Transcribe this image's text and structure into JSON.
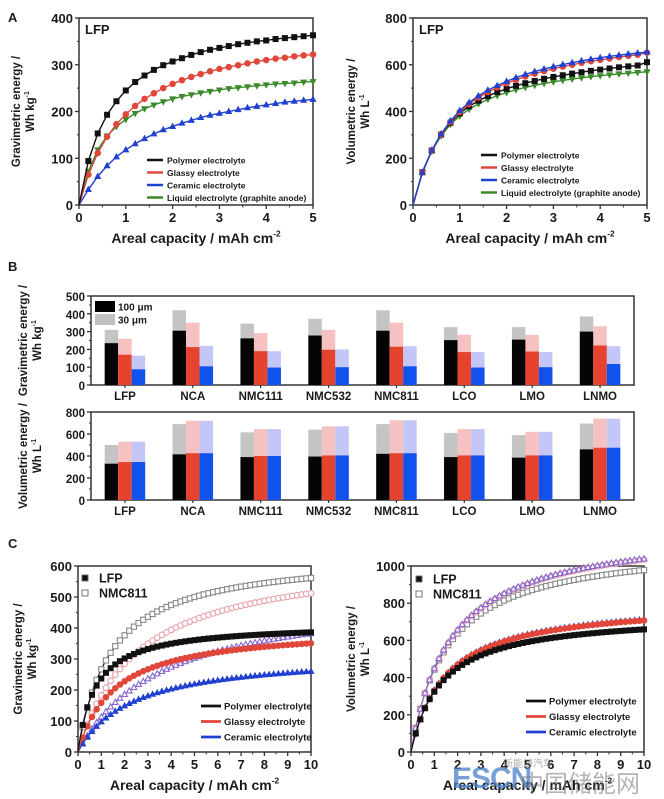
{
  "figure": {
    "panel_labels": [
      "A",
      "B",
      "C"
    ],
    "watermark": {
      "logo": "ESCN",
      "cn_text": "中国储能网",
      "small_text": "新能源汽车"
    }
  },
  "chart_data": [
    {
      "id": "A-left",
      "type": "line",
      "panel": "A",
      "annotation": "LFP",
      "xlabel": "Areal capacity / mAh cm",
      "xlabel_sup": "-2",
      "ylabel": "Gravimetric energy /",
      "ylabel2": "Wh kg",
      "ylabel2_sup": "-1",
      "xlim": [
        0,
        5
      ],
      "ylim": [
        0,
        400
      ],
      "xticks": [
        "0",
        "1",
        "2",
        "3",
        "4",
        "5"
      ],
      "yticks": [
        "0",
        "100",
        "200",
        "300",
        "400"
      ],
      "legend_position": "bottom-right",
      "x": [
        0,
        0.2,
        0.4,
        0.6,
        0.8,
        1.0,
        1.2,
        1.4,
        1.6,
        1.8,
        2.0,
        2.2,
        2.4,
        2.6,
        2.8,
        3.0,
        3.2,
        3.4,
        3.6,
        3.8,
        4.0,
        4.2,
        4.4,
        4.6,
        4.8,
        5.0
      ],
      "series": [
        {
          "name": "Polymer electrolyte",
          "color": "#111111",
          "marker": "square",
          "values": [
            0,
            94,
            153,
            193,
            222,
            245,
            263,
            277,
            289,
            299,
            307,
            314,
            321,
            327,
            332,
            336,
            340,
            344,
            347,
            350,
            352,
            355,
            357,
            359,
            361,
            363
          ]
        },
        {
          "name": "Glassy electrolyte",
          "color": "#e0463a",
          "marker": "circle",
          "values": [
            0,
            65,
            111,
            146,
            173,
            194,
            212,
            227,
            239,
            250,
            259,
            267,
            274,
            280,
            286,
            291,
            295,
            299,
            303,
            307,
            310,
            313,
            315,
            318,
            320,
            322
          ]
        },
        {
          "name": "Ceramic electrolyte",
          "color": "#2040d0",
          "marker": "triangle-up",
          "values": [
            0,
            33,
            61,
            84,
            103,
            118,
            131,
            142,
            152,
            161,
            168,
            175,
            181,
            187,
            192,
            196,
            200,
            204,
            208,
            211,
            214,
            217,
            220,
            222,
            224,
            226
          ]
        },
        {
          "name": "Liquid electrolyte (graphite anode)",
          "color": "#3a8a2a",
          "marker": "triangle-down",
          "values": [
            0,
            72,
            118,
            148,
            168,
            183,
            196,
            206,
            214,
            221,
            227,
            232,
            236,
            240,
            243,
            246,
            249,
            251,
            253,
            255,
            257,
            259,
            260,
            261,
            263,
            264
          ]
        }
      ]
    },
    {
      "id": "A-right",
      "type": "line",
      "panel": "A",
      "annotation": "LFP",
      "xlabel": "Areal capacity / mAh cm",
      "xlabel_sup": "-2",
      "ylabel": "Volumetric energy /",
      "ylabel2": "Wh L",
      "ylabel2_sup": "-1",
      "xlim": [
        0,
        5
      ],
      "ylim": [
        0,
        800
      ],
      "xticks": [
        "0",
        "1",
        "2",
        "3",
        "4",
        "5"
      ],
      "yticks": [
        "0",
        "200",
        "400",
        "600",
        "800"
      ],
      "legend_position": "bottom-right",
      "x": [
        0,
        0.2,
        0.4,
        0.6,
        0.8,
        1.0,
        1.2,
        1.4,
        1.6,
        1.8,
        2.0,
        2.2,
        2.4,
        2.6,
        2.8,
        3.0,
        3.2,
        3.4,
        3.6,
        3.8,
        4.0,
        4.2,
        4.4,
        4.6,
        4.8,
        5.0
      ],
      "series": [
        {
          "name": "Polymer electrolyte",
          "color": "#111111",
          "marker": "square",
          "values": [
            0,
            140,
            233,
            301,
            352,
            392,
            422,
            446,
            466,
            483,
            497,
            510,
            521,
            531,
            540,
            548,
            555,
            562,
            568,
            574,
            579,
            584,
            589,
            593,
            597,
            611
          ]
        },
        {
          "name": "Glassy electrolyte",
          "color": "#e0463a",
          "marker": "circle",
          "values": [
            0,
            140,
            233,
            302,
            356,
            398,
            432,
            460,
            483,
            503,
            521,
            536,
            550,
            562,
            573,
            583,
            592,
            600,
            608,
            615,
            621,
            627,
            633,
            638,
            643,
            652
          ]
        },
        {
          "name": "Ceramic electrolyte",
          "color": "#2040d0",
          "marker": "triangle-up",
          "values": [
            0,
            140,
            234,
            304,
            360,
            404,
            439,
            467,
            491,
            511,
            529,
            545,
            559,
            571,
            582,
            592,
            601,
            609,
            617,
            624,
            630,
            636,
            641,
            646,
            650,
            654
          ]
        },
        {
          "name": "Liquid electrolyte (graphite anode)",
          "color": "#3a8a2a",
          "marker": "triangle-down",
          "values": [
            0,
            139,
            230,
            296,
            345,
            381,
            410,
            433,
            452,
            468,
            481,
            493,
            503,
            512,
            520,
            527,
            533,
            539,
            544,
            549,
            553,
            557,
            561,
            564,
            567,
            570
          ]
        }
      ]
    },
    {
      "id": "B-top",
      "type": "bar",
      "panel": "B",
      "ylabel": "Gravimetric energy /",
      "ylabel2": "Wh kg",
      "ylabel2_sup": "-1",
      "ylim": [
        0,
        500
      ],
      "yticks": [
        "0",
        "100",
        "200",
        "300",
        "400",
        "500"
      ],
      "categories": [
        "LFP",
        "NCA",
        "NMC111",
        "NMC532",
        "NMC811",
        "LCO",
        "LMO",
        "LNMO"
      ],
      "legend": [
        {
          "label": "100 μm",
          "color": "#000000"
        },
        {
          "label": "30 μm",
          "color": "#c0c0c0"
        }
      ],
      "legend_position": "top-left",
      "series": [
        {
          "name": "Polymer 100 μm",
          "color": "#050505",
          "values": [
            235,
            305,
            262,
            278,
            305,
            252,
            255,
            300
          ]
        },
        {
          "name": "Polymer 30 μm",
          "color": "#c4c4c4",
          "values": [
            310,
            420,
            345,
            372,
            420,
            325,
            325,
            385
          ]
        },
        {
          "name": "Glassy 100 μm",
          "color": "#e5432e",
          "values": [
            170,
            213,
            190,
            198,
            215,
            185,
            188,
            222
          ]
        },
        {
          "name": "Glassy 30 μm",
          "color": "#f6c1c1",
          "values": [
            260,
            350,
            292,
            310,
            350,
            282,
            282,
            330
          ]
        },
        {
          "name": "Ceramic 100 μm",
          "color": "#1252ec",
          "values": [
            88,
            105,
            98,
            100,
            105,
            98,
            100,
            118
          ]
        },
        {
          "name": "Ceramic 30 μm",
          "color": "#c3c6f6",
          "values": [
            165,
            220,
            190,
            200,
            218,
            185,
            185,
            218
          ]
        }
      ]
    },
    {
      "id": "B-bottom",
      "type": "bar",
      "panel": "B",
      "ylabel": "Volumetric energy /",
      "ylabel2": "Wh L",
      "ylabel2_sup": "-1",
      "ylim": [
        0,
        800
      ],
      "yticks": [
        "0",
        "200",
        "400",
        "600",
        "800"
      ],
      "categories": [
        "LFP",
        "NCA",
        "NMC111",
        "NMC532",
        "NMC811",
        "LCO",
        "LMO",
        "LNMO"
      ],
      "series": [
        {
          "name": "Polymer 100 μm",
          "color": "#050505",
          "values": [
            330,
            415,
            390,
            395,
            420,
            390,
            385,
            460
          ]
        },
        {
          "name": "Polymer 30 μm",
          "color": "#c4c4c4",
          "values": [
            500,
            690,
            615,
            640,
            690,
            610,
            590,
            695
          ]
        },
        {
          "name": "Glassy 100 μm",
          "color": "#e5432e",
          "values": [
            345,
            425,
            400,
            405,
            425,
            405,
            405,
            475
          ]
        },
        {
          "name": "Glassy 30 μm",
          "color": "#f6c1c1",
          "values": [
            530,
            720,
            645,
            670,
            725,
            645,
            620,
            740
          ]
        },
        {
          "name": "Ceramic 100 μm",
          "color": "#1252ec",
          "values": [
            345,
            425,
            400,
            405,
            425,
            405,
            405,
            475
          ]
        },
        {
          "name": "Ceramic 30 μm",
          "color": "#c3c6f6",
          "values": [
            530,
            720,
            645,
            670,
            725,
            645,
            620,
            740
          ]
        }
      ]
    },
    {
      "id": "C-left",
      "type": "scatter",
      "panel": "C",
      "xlabel": "Areal capacity / mAh cm",
      "xlabel_sup": "-2",
      "ylabel": "Gravimetric energy /",
      "ylabel2": "Wh kg",
      "ylabel2_sup": "-1",
      "xlim": [
        0,
        10
      ],
      "ylim": [
        0,
        600
      ],
      "xticks": [
        "0",
        "1",
        "2",
        "3",
        "4",
        "5",
        "6",
        "7",
        "8",
        "9",
        "10"
      ],
      "yticks": [
        "0",
        "100",
        "200",
        "300",
        "400",
        "500",
        "600"
      ],
      "marker_legend": [
        {
          "label": "LFP",
          "marker": "filled-square"
        },
        {
          "label": "NMC811",
          "marker": "open-square"
        }
      ],
      "line_legend": [
        {
          "label": "Polymer electrolyte",
          "color": "#111111"
        },
        {
          "label": "Glassy electrolyte",
          "color": "#e0463a"
        },
        {
          "label": "Ceramic electrolyte",
          "color": "#2040d0"
        }
      ],
      "legend_position": "bottom-right",
      "model": "E = Emax * x / (k + x)",
      "series": [
        {
          "name": "LFP Polymer",
          "color": "#111111",
          "filled": true,
          "marker": "square",
          "Emax": 415,
          "k": 0.75
        },
        {
          "name": "LFP Glassy",
          "color": "#e0463a",
          "filled": true,
          "marker": "circle",
          "Emax": 405,
          "k": 1.55
        },
        {
          "name": "LFP Ceramic",
          "color": "#2040d0",
          "filled": true,
          "marker": "triangle-up",
          "Emax": 320,
          "k": 2.3
        },
        {
          "name": "NMC811 Polymer",
          "color": "#888888",
          "filled": false,
          "marker": "square",
          "Emax": 640,
          "k": 1.4
        },
        {
          "name": "NMC811 Glassy",
          "color": "#e8a0a8",
          "filled": false,
          "marker": "circle",
          "Emax": 640,
          "k": 2.5
        },
        {
          "name": "NMC811 Ceramic",
          "color": "#8866cc",
          "filled": false,
          "marker": "triangle-up",
          "Emax": 520,
          "k": 3.6
        }
      ]
    },
    {
      "id": "C-right",
      "type": "scatter",
      "panel": "C",
      "xlabel": "Areal capacity / mAh cm",
      "xlabel_sup": "-2",
      "ylabel": "Volumetric energy /",
      "ylabel2": "Wh L",
      "ylabel2_sup": "-1",
      "xlim": [
        0,
        10
      ],
      "ylim": [
        0,
        1000
      ],
      "xticks": [
        "0",
        "1",
        "2",
        "3",
        "4",
        "5",
        "6",
        "7",
        "8",
        "9",
        "10"
      ],
      "yticks": [
        "0",
        "200",
        "400",
        "600",
        "800",
        "1000"
      ],
      "marker_legend": [
        {
          "label": "LFP",
          "marker": "filled-square"
        },
        {
          "label": "NMC811",
          "marker": "open-square"
        }
      ],
      "line_legend": [
        {
          "label": "Polymer electrolyte",
          "color": "#111111"
        },
        {
          "label": "Glassy electrolyte",
          "color": "#e0463a"
        },
        {
          "label": "Ceramic electrolyte",
          "color": "#2040d0"
        }
      ],
      "legend_position": "bottom-right",
      "model": "E = Emax * x / (k + x)",
      "series": [
        {
          "name": "LFP Polymer",
          "color": "#111111",
          "filled": true,
          "marker": "square",
          "Emax": 745,
          "k": 1.3
        },
        {
          "name": "LFP Glassy",
          "color": "#e0463a",
          "filled": true,
          "marker": "circle",
          "Emax": 810,
          "k": 1.45
        },
        {
          "name": "LFP Ceramic",
          "color": "#2040d0",
          "filled": true,
          "marker": "triangle-up",
          "Emax": 815,
          "k": 1.45
        },
        {
          "name": "NMC811 Polymer",
          "color": "#888888",
          "filled": false,
          "marker": "square",
          "Emax": 1130,
          "k": 1.55
        },
        {
          "name": "NMC811 Glassy",
          "color": "#e8a0a8",
          "filled": false,
          "marker": "circle",
          "Emax": 1210,
          "k": 1.7
        },
        {
          "name": "NMC811 Ceramic",
          "color": "#8866cc",
          "filled": false,
          "marker": "triangle-up",
          "Emax": 1215,
          "k": 1.7
        }
      ]
    }
  ]
}
